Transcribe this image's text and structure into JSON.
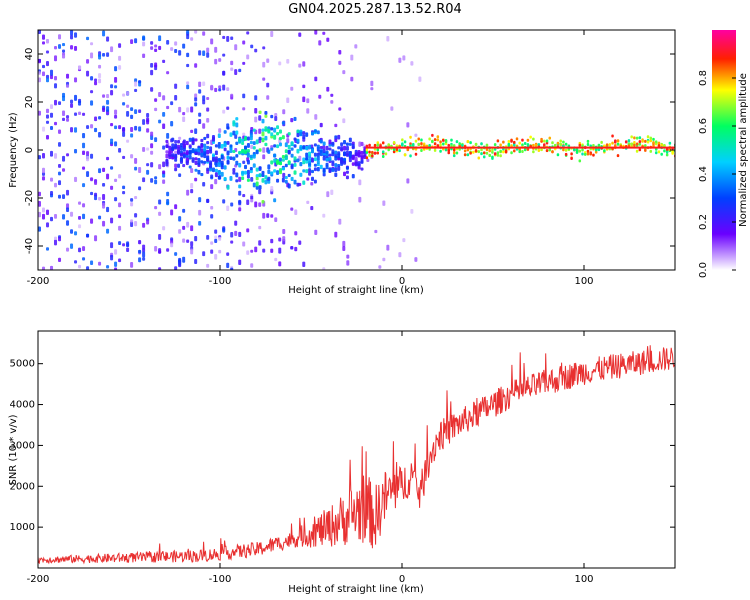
{
  "title": "GN04.2025.287.13.52.R04",
  "colors": {
    "snr_line": "#e83030",
    "background": "#ffffff",
    "axis": "#000000"
  },
  "chart_data": [
    {
      "type": "heatmap",
      "name": "spectrogram",
      "xlabel": "Height of straight line (km)",
      "ylabel": "Frequency (Hz)",
      "xlim": [
        -200,
        150
      ],
      "ylim": [
        -50,
        50
      ],
      "xticks": [
        -200,
        -100,
        0,
        100
      ],
      "xtick_labels": [
        "-200",
        "-100",
        "0",
        "100"
      ],
      "yticks": [
        -40,
        -20,
        0,
        20,
        40
      ],
      "ytick_labels": [
        "-40",
        "-20",
        "0",
        "20",
        "40"
      ],
      "colorbar": {
        "label": "Normalized spectral amplitude",
        "range": [
          0,
          1
        ],
        "ticks": [
          0.0,
          0.2,
          0.4,
          0.6,
          0.8
        ],
        "tick_labels": [
          "0.0",
          "0.2",
          "0.4",
          "0.6",
          "0.8"
        ],
        "colormap": [
          "#ffffff",
          "#6a00ff",
          "#0040ff",
          "#00d0ff",
          "#00ff60",
          "#ffff00",
          "#ff2000",
          "#ff00a0"
        ]
      },
      "features": [
        {
          "region": "noise",
          "x_range": [
            -200,
            -30
          ],
          "freq_range": [
            -50,
            50
          ],
          "amplitude": 0.15
        },
        {
          "region": "tone_band",
          "x_range": [
            -130,
            -20
          ],
          "freq_center": -2,
          "freq_halfwidth": 9,
          "amplitude": 0.3
        },
        {
          "region": "carrier",
          "x_range": [
            -20,
            150
          ],
          "freq_center": 1,
          "amplitude": 0.9
        }
      ]
    },
    {
      "type": "line",
      "name": "snr",
      "xlabel": "Height of straight line (km)",
      "ylabel": "SNR (10 * v/v)",
      "xlim": [
        -200,
        150
      ],
      "ylim": [
        0,
        5800
      ],
      "xticks": [
        -200,
        -100,
        0,
        100
      ],
      "xtick_labels": [
        "-200",
        "-100",
        "0",
        "100"
      ],
      "yticks": [
        1000,
        2000,
        3000,
        4000,
        5000
      ],
      "ytick_labels": [
        "1000",
        "2000",
        "3000",
        "4000",
        "5000"
      ],
      "trend_points": {
        "x": [
          -200,
          -150,
          -110,
          -80,
          -60,
          -40,
          -30,
          -20,
          -15,
          -10,
          -5,
          0,
          5,
          10,
          15,
          20,
          30,
          50,
          60,
          80,
          100,
          120,
          150
        ],
        "y": [
          200,
          250,
          300,
          450,
          700,
          1000,
          1250,
          1500,
          1200,
          1700,
          1900,
          2000,
          2300,
          1800,
          2700,
          3200,
          3500,
          4000,
          4250,
          4550,
          4800,
          4950,
          5150
        ]
      },
      "noise_amplitude": [
        {
          "x": -200,
          "amp": 80
        },
        {
          "x": -60,
          "amp": 200
        },
        {
          "x": -40,
          "amp": 500
        },
        {
          "x": -20,
          "amp": 900
        },
        {
          "x": 0,
          "amp": 500
        },
        {
          "x": 30,
          "amp": 350
        },
        {
          "x": 150,
          "amp": 300
        }
      ]
    }
  ]
}
